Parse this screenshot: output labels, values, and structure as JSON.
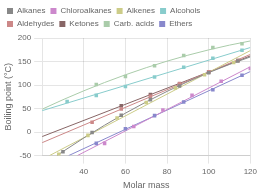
{
  "chart_data": {
    "type": "scatter",
    "xlabel": "Molar mass",
    "ylabel": "Boiling point (°C)",
    "xlim": [
      20,
      120
    ],
    "ylim": [
      -50,
      200
    ],
    "xticks": [
      40,
      60,
      80,
      100,
      120
    ],
    "yticks": [
      -50,
      0,
      50,
      100,
      150,
      200
    ],
    "grid": true,
    "legend": "upper left",
    "series": [
      {
        "name": "Alkanes",
        "color": "#888888",
        "marker": "square",
        "x": [
          30,
          44,
          58,
          72,
          86,
          100,
          114
        ],
        "values": [
          -42,
          -1,
          36,
          69,
          98,
          126,
          151
        ],
        "fit": {
          "x": [
            27.12,
            30,
            40,
            50,
            60,
            70,
            80,
            90,
            100,
            110,
            120
          ],
          "values": [
            -49.98,
            -41.38,
            -12.57,
            14.62,
            40.2,
            64.16,
            86.51,
            107.24,
            126.36,
            143.86,
            159.74
          ]
        }
      },
      {
        "name": "Chloroalkanes",
        "color": "#cc88cc",
        "marker": "square",
        "x": [
          50,
          64,
          78,
          92,
          106,
          120
        ],
        "values": [
          -24,
          12,
          47,
          78,
          108,
          135
        ],
        "fit": {
          "x": [
            36.91,
            120
          ],
          "values": [
            -50,
            138.9
          ]
        }
      },
      {
        "name": "Alkenes",
        "color": "#cccc88",
        "marker": "square",
        "x": [
          28,
          42,
          56,
          70,
          84,
          98,
          112
        ],
        "values": [
          -47,
          -7,
          30,
          63,
          94,
          122,
          148
        ],
        "fit": {
          "x": [
            23.51,
            120
          ],
          "values": [
            -50,
            173.26
          ]
        }
      },
      {
        "name": "Alcohols",
        "color": "#88cccc",
        "marker": "square",
        "x": [
          32,
          46,
          60,
          74,
          88,
          102,
          116
        ],
        "values": [
          65,
          78,
          97,
          117,
          138,
          157,
          174
        ],
        "fit": {
          "x": [
            20,
            120
          ],
          "values": [
            45.54,
            179.72
          ]
        }
      },
      {
        "name": "Aldehydes",
        "color": "#cc8888",
        "marker": "square",
        "x": [
          44,
          58,
          72,
          86,
          100,
          114
        ],
        "values": [
          21,
          49,
          76,
          103,
          128,
          152
        ],
        "fit": {
          "x": [
            20,
            120
          ],
          "values": [
            -22.49,
            165.06
          ]
        }
      },
      {
        "name": "Ketones",
        "color": "#886666",
        "marker": "square",
        "x": [
          58,
          72,
          86,
          100,
          114
        ],
        "values": [
          56,
          80,
          102,
          128,
          152
        ],
        "fit": {
          "x": [
            20,
            120
          ],
          "values": [
            -9.54,
            161.89
          ]
        }
      },
      {
        "name": "Carb. acids",
        "color": "#aaccaa",
        "marker": "square",
        "x": [
          46,
          60,
          74,
          88,
          102,
          116
        ],
        "values": [
          101,
          118,
          141,
          163,
          180,
          188
        ],
        "fit": {
          "x": [
            20,
            30,
            40,
            50,
            60,
            70,
            80,
            90,
            100,
            110,
            120
          ],
          "values": [
            48.66,
            68.82,
            87.72,
            105.37,
            121.76,
            136.9,
            150.78,
            163.4,
            174.76,
            184.86,
            193.71
          ]
        }
      },
      {
        "name": "Ethers",
        "color": "#8888cc",
        "marker": "square",
        "x": [
          46,
          60,
          74,
          88,
          102,
          116
        ],
        "values": [
          -24,
          7,
          35,
          64,
          90,
          121
        ],
        "fit": {
          "x": [
            32.72,
            120
          ],
          "values": [
            -49.99,
            128.66
          ]
        }
      }
    ]
  }
}
